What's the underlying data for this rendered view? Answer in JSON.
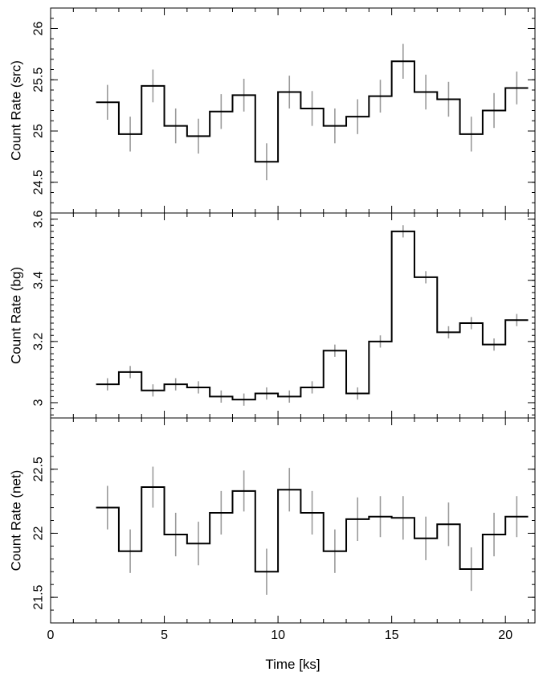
{
  "chart_data": {
    "type": "line",
    "style": "step with error bars",
    "shared_x": {
      "label": "Time [ks]",
      "range": [
        0,
        21.3
      ],
      "major_ticks": [
        0,
        5,
        10,
        15,
        20
      ],
      "minor_step": 1,
      "bin_edges": [
        2,
        3,
        4,
        5,
        6,
        7,
        8,
        9,
        10,
        11,
        12,
        13,
        14,
        15,
        16,
        17,
        18,
        19,
        20,
        21
      ],
      "bin_centers": [
        2.5,
        3.5,
        4.5,
        5.5,
        6.5,
        7.5,
        8.5,
        9.5,
        10.5,
        11.5,
        12.5,
        13.5,
        14.5,
        15.5,
        16.5,
        17.5,
        18.5,
        19.5,
        20.5
      ]
    },
    "panels": [
      {
        "ylabel": "Count Rate (src)",
        "ylim": [
          24.2,
          26.2
        ],
        "major_ticks": [
          24.5,
          25,
          25.5,
          26
        ],
        "tick_labels": [
          "24.5",
          "25",
          "25.5",
          "26"
        ],
        "minor_step": 0.1,
        "values": [
          25.28,
          24.97,
          25.44,
          25.05,
          24.95,
          25.19,
          25.35,
          24.7,
          25.38,
          25.22,
          25.05,
          25.14,
          25.34,
          25.68,
          25.38,
          25.31,
          24.97,
          25.2,
          25.42
        ],
        "errors": [
          0.17,
          0.17,
          0.16,
          0.17,
          0.17,
          0.17,
          0.16,
          0.18,
          0.16,
          0.17,
          0.17,
          0.17,
          0.16,
          0.17,
          0.17,
          0.17,
          0.17,
          0.17,
          0.16
        ]
      },
      {
        "ylabel": "Count Rate (bg)",
        "ylim": [
          2.95,
          3.62
        ],
        "major_ticks": [
          3,
          3.2,
          3.4,
          3.6
        ],
        "tick_labels": [
          "3",
          "3.2",
          "3.4",
          "3.6"
        ],
        "minor_step": 0.02,
        "values": [
          3.06,
          3.1,
          3.04,
          3.06,
          3.05,
          3.02,
          3.01,
          3.03,
          3.02,
          3.05,
          3.17,
          3.03,
          3.2,
          3.56,
          3.41,
          3.23,
          3.26,
          3.19,
          3.27
        ],
        "errors": [
          0.02,
          0.02,
          0.02,
          0.02,
          0.02,
          0.02,
          0.02,
          0.02,
          0.02,
          0.02,
          0.02,
          0.02,
          0.02,
          0.02,
          0.02,
          0.02,
          0.02,
          0.02,
          0.02
        ]
      },
      {
        "ylabel": "Count Rate (net)",
        "ylim": [
          21.3,
          22.9
        ],
        "major_ticks": [
          21.5,
          22,
          22.5
        ],
        "tick_labels": [
          "21.5",
          "22",
          "22.5"
        ],
        "minor_step": 0.1,
        "values": [
          22.2,
          21.86,
          22.36,
          21.99,
          21.92,
          22.16,
          22.33,
          21.7,
          22.34,
          22.16,
          21.86,
          22.11,
          22.13,
          22.12,
          21.96,
          22.07,
          21.72,
          21.99,
          22.13
        ],
        "errors": [
          0.17,
          0.17,
          0.16,
          0.17,
          0.17,
          0.17,
          0.16,
          0.18,
          0.17,
          0.17,
          0.17,
          0.17,
          0.16,
          0.17,
          0.17,
          0.17,
          0.17,
          0.17,
          0.16
        ]
      }
    ]
  }
}
